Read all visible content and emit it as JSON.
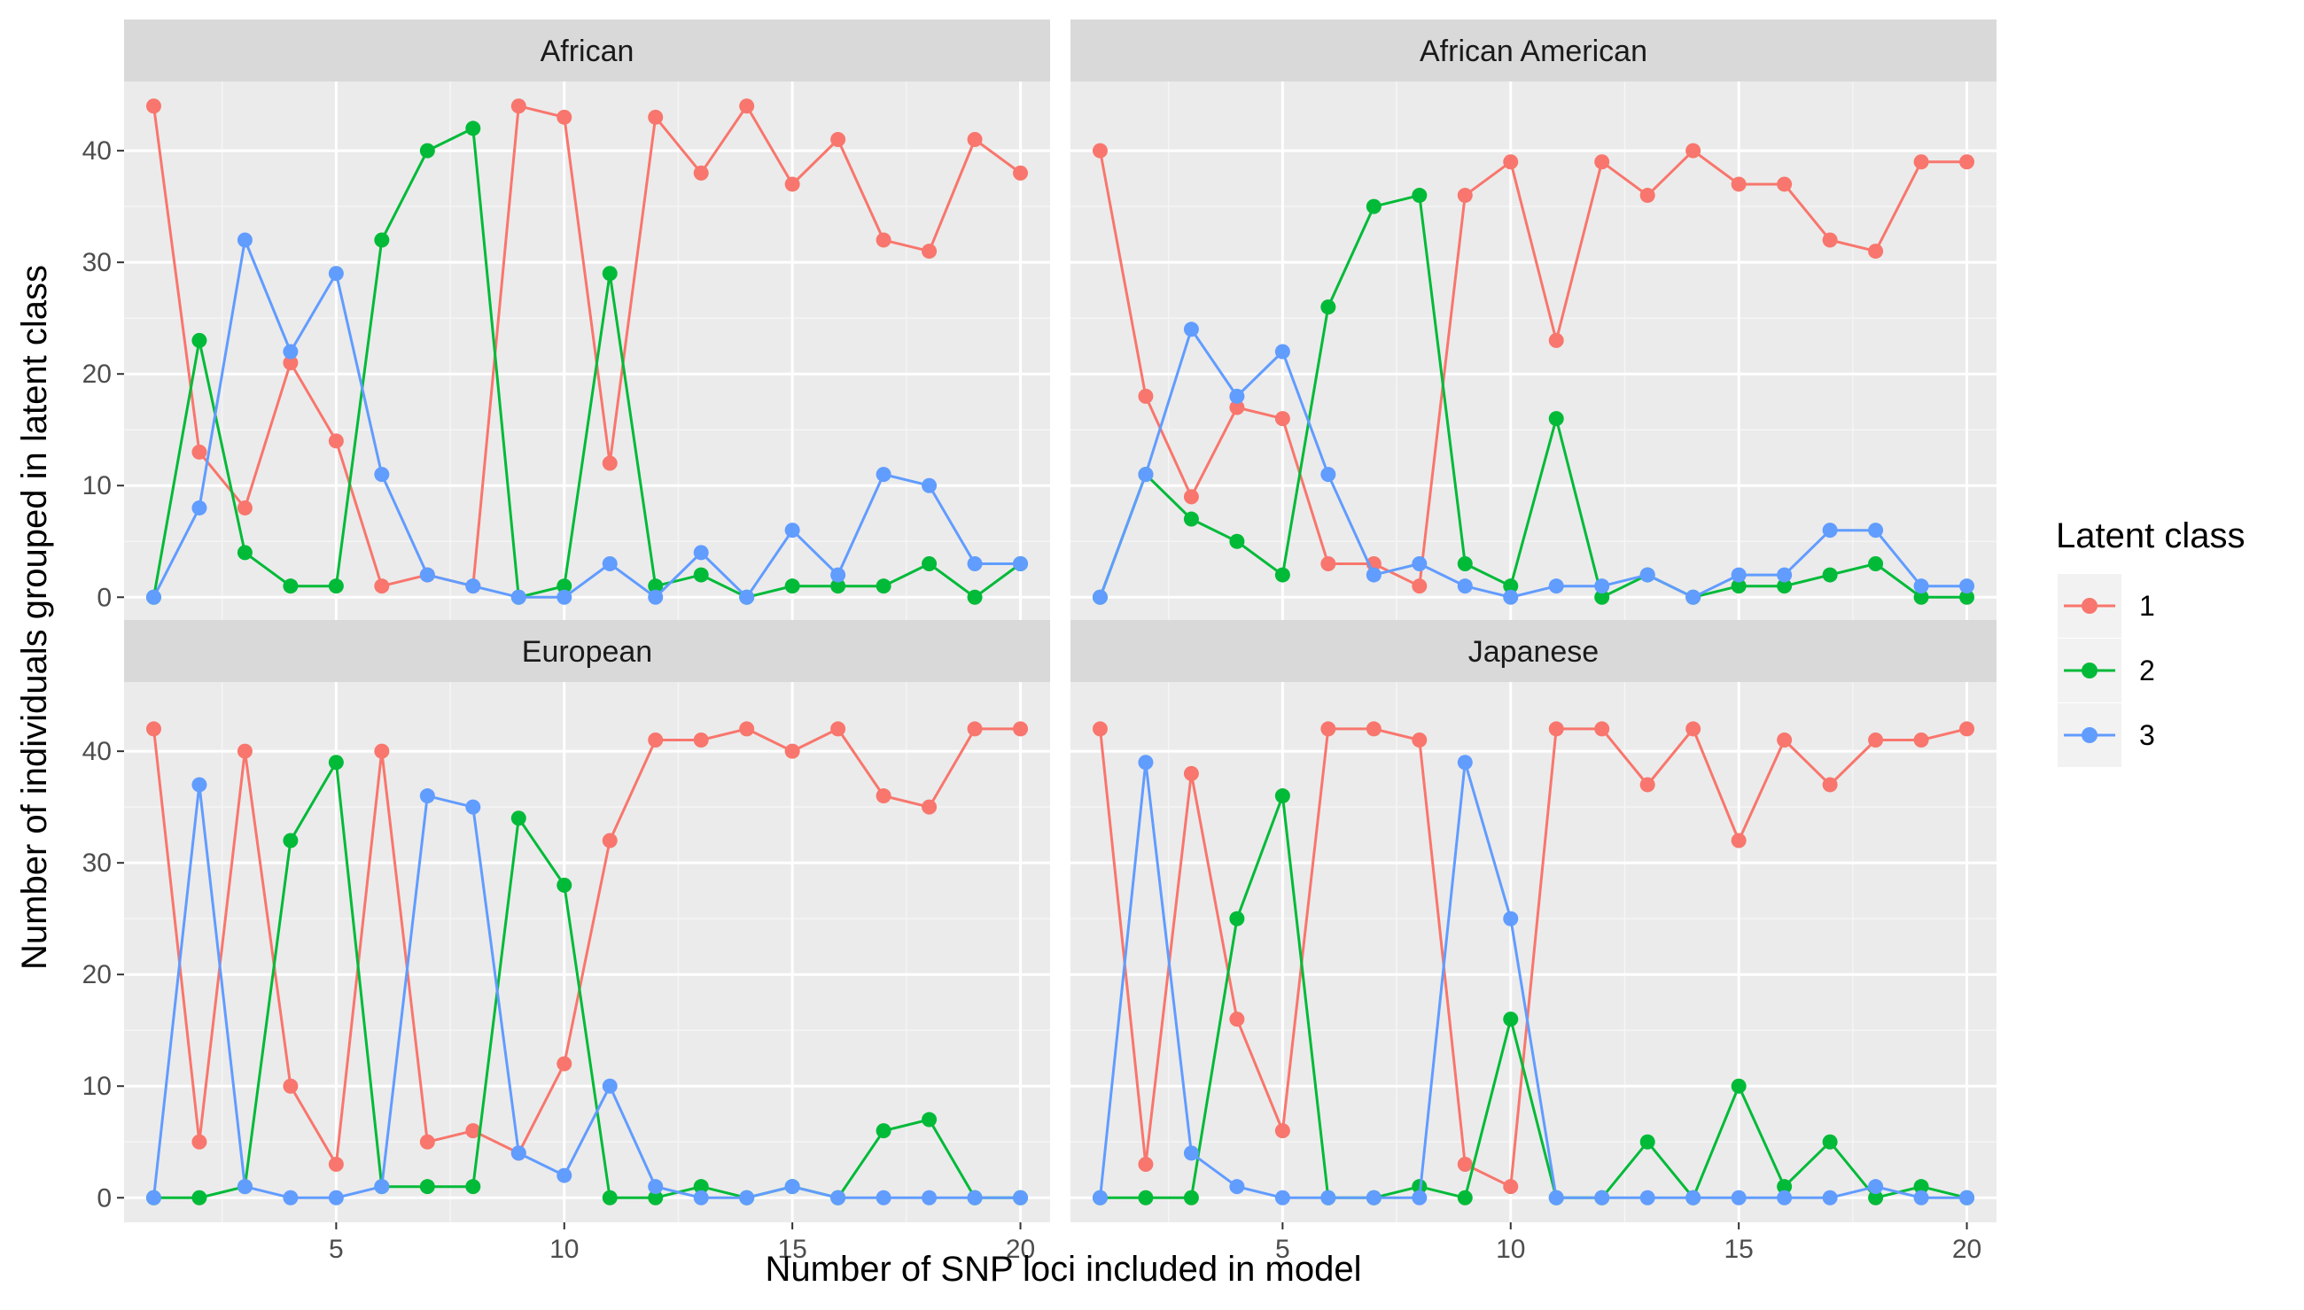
{
  "chart_data": {
    "type": "line",
    "xlabel": "Number of SNP loci included in model",
    "ylabel": "Number of individuals grouped in latent class",
    "xlim": [
      0.35,
      20.65
    ],
    "ylim": [
      -2.2,
      46.2
    ],
    "x_ticks": [
      5,
      10,
      15,
      20
    ],
    "y_ticks": [
      0,
      10,
      20,
      30,
      40
    ],
    "grid": true,
    "x": [
      1,
      2,
      3,
      4,
      5,
      6,
      7,
      8,
      9,
      10,
      11,
      12,
      13,
      14,
      15,
      16,
      17,
      18,
      19,
      20
    ],
    "legend": {
      "title": "Latent class",
      "position": "right",
      "entries": [
        {
          "label": "1",
          "color": "#F8766D"
        },
        {
          "label": "2",
          "color": "#00BA38"
        },
        {
          "label": "3",
          "color": "#619CFF"
        }
      ]
    },
    "panels": [
      {
        "title": "African",
        "series": [
          {
            "class": "1",
            "color": "#F8766D",
            "values": [
              44,
              13,
              8,
              21,
              14,
              1,
              2,
              1,
              44,
              43,
              12,
              43,
              38,
              44,
              37,
              41,
              32,
              31,
              41,
              38
            ]
          },
          {
            "class": "2",
            "color": "#00BA38",
            "values": [
              0,
              23,
              4,
              1,
              1,
              32,
              40,
              42,
              0,
              1,
              29,
              1,
              2,
              0,
              1,
              1,
              1,
              3,
              0,
              3
            ]
          },
          {
            "class": "3",
            "color": "#619CFF",
            "values": [
              0,
              8,
              32,
              22,
              29,
              11,
              2,
              1,
              0,
              0,
              3,
              0,
              4,
              0,
              6,
              2,
              11,
              10,
              3,
              3
            ]
          }
        ]
      },
      {
        "title": "African American",
        "series": [
          {
            "class": "1",
            "color": "#F8766D",
            "values": [
              40,
              18,
              9,
              17,
              16,
              3,
              3,
              1,
              36,
              39,
              23,
              39,
              36,
              40,
              37,
              37,
              32,
              31,
              39,
              39
            ]
          },
          {
            "class": "2",
            "color": "#00BA38",
            "values": [
              0,
              11,
              7,
              5,
              2,
              26,
              35,
              36,
              3,
              1,
              16,
              0,
              2,
              0,
              1,
              1,
              2,
              3,
              0,
              0
            ]
          },
          {
            "class": "3",
            "color": "#619CFF",
            "values": [
              0,
              11,
              24,
              18,
              22,
              11,
              2,
              3,
              1,
              0,
              1,
              1,
              2,
              0,
              2,
              2,
              6,
              6,
              1,
              1
            ]
          }
        ]
      },
      {
        "title": "European",
        "series": [
          {
            "class": "1",
            "color": "#F8766D",
            "values": [
              42,
              5,
              40,
              10,
              3,
              40,
              5,
              6,
              4,
              12,
              32,
              41,
              41,
              42,
              40,
              42,
              36,
              35,
              42,
              42
            ]
          },
          {
            "class": "2",
            "color": "#00BA38",
            "values": [
              0,
              0,
              1,
              32,
              39,
              1,
              1,
              1,
              34,
              28,
              0,
              0,
              1,
              0,
              1,
              0,
              6,
              7,
              0,
              0
            ]
          },
          {
            "class": "3",
            "color": "#619CFF",
            "values": [
              0,
              37,
              1,
              0,
              0,
              1,
              36,
              35,
              4,
              2,
              10,
              1,
              0,
              0,
              1,
              0,
              0,
              0,
              0,
              0
            ]
          }
        ]
      },
      {
        "title": "Japanese",
        "series": [
          {
            "class": "1",
            "color": "#F8766D",
            "values": [
              42,
              3,
              38,
              16,
              6,
              42,
              42,
              41,
              3,
              1,
              42,
              42,
              37,
              42,
              32,
              41,
              37,
              41,
              41,
              42
            ]
          },
          {
            "class": "2",
            "color": "#00BA38",
            "values": [
              0,
              0,
              0,
              25,
              36,
              0,
              0,
              1,
              0,
              16,
              0,
              0,
              5,
              0,
              10,
              1,
              5,
              0,
              1,
              0
            ]
          },
          {
            "class": "3",
            "color": "#619CFF",
            "values": [
              0,
              39,
              4,
              1,
              0,
              0,
              0,
              0,
              39,
              25,
              0,
              0,
              0,
              0,
              0,
              0,
              0,
              1,
              0,
              0
            ]
          }
        ]
      }
    ]
  }
}
